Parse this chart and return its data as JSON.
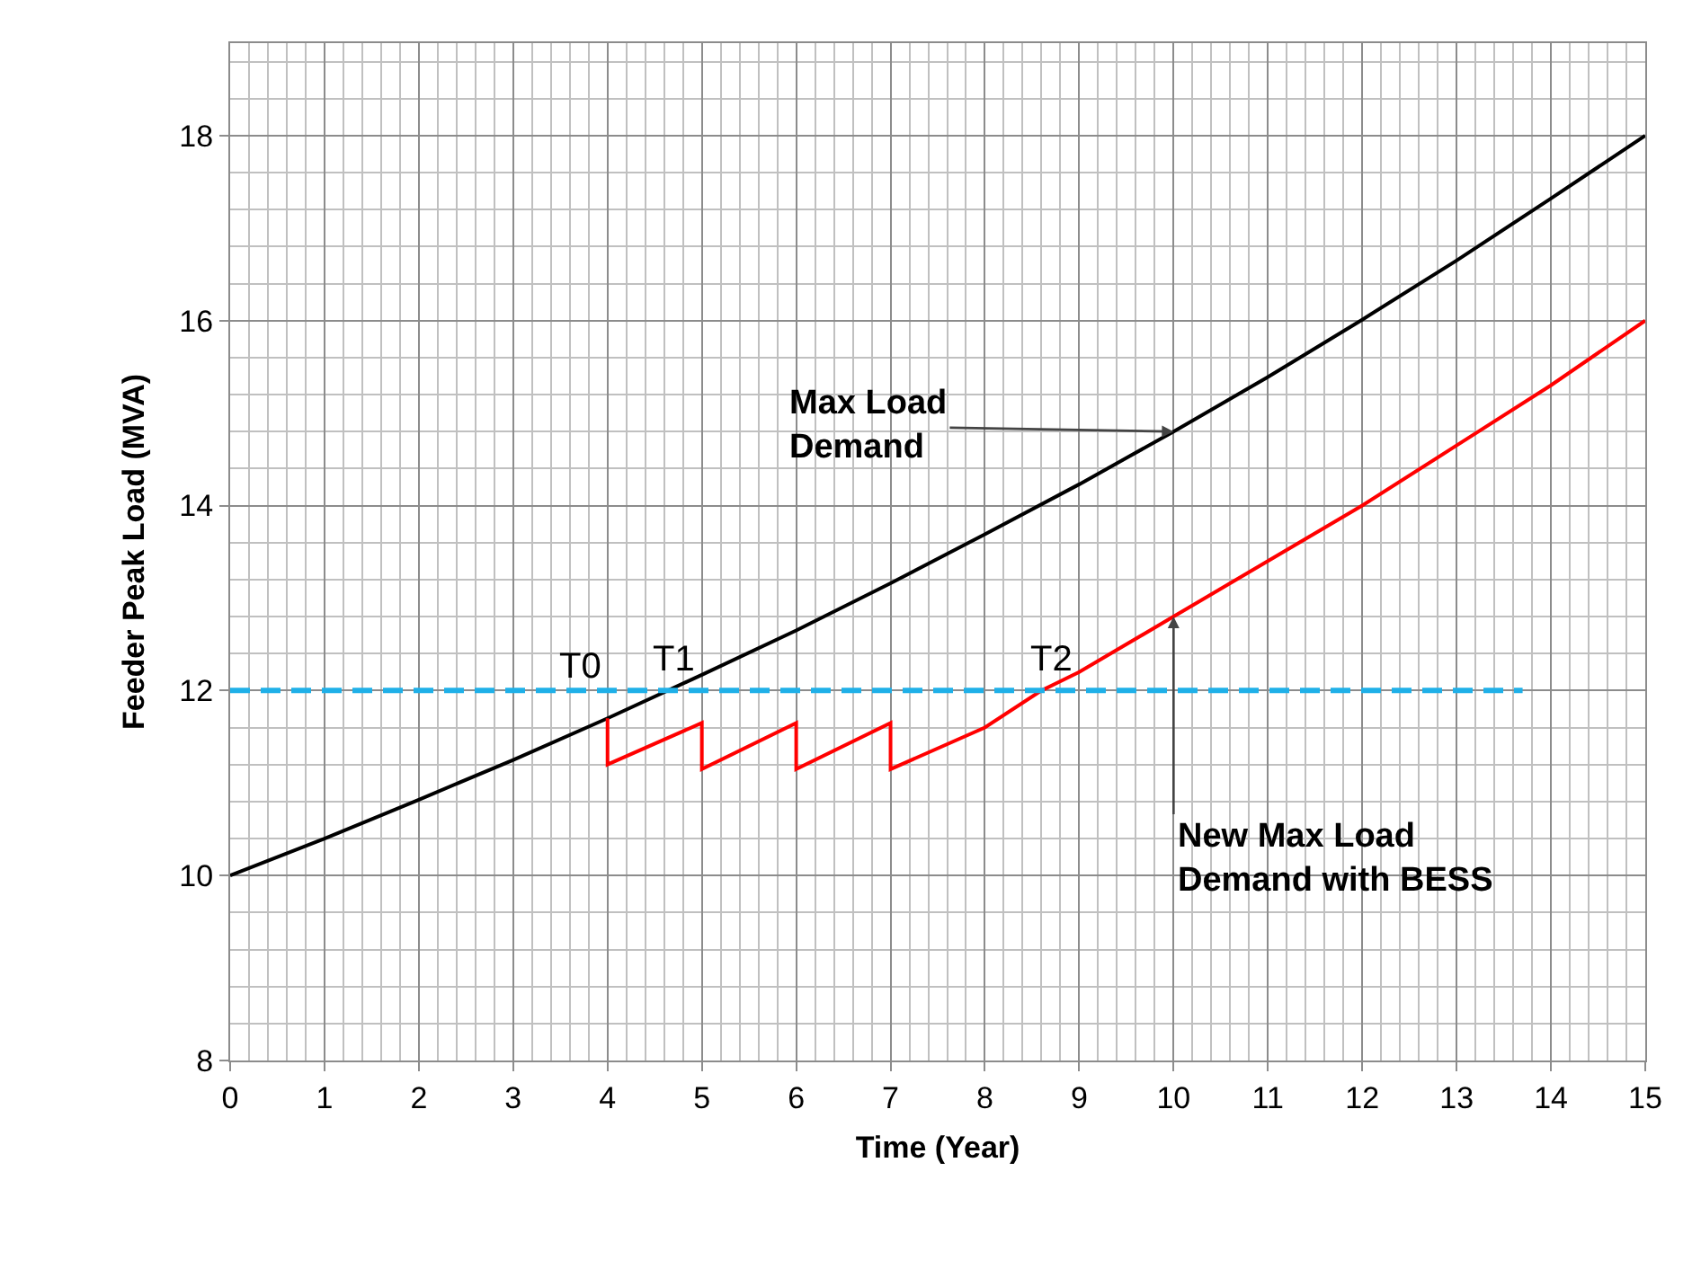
{
  "chart_data": {
    "type": "line",
    "xlabel": "Time (Year)",
    "ylabel": "Feeder Peak Load (MVA)",
    "xlim": [
      0,
      15
    ],
    "xticks": [
      0,
      1,
      2,
      3,
      4,
      5,
      6,
      7,
      8,
      9,
      10,
      11,
      12,
      13,
      14,
      15
    ],
    "ylim": [
      8,
      19
    ],
    "yticks": [
      8,
      10,
      12,
      14,
      16,
      18
    ],
    "grid": true,
    "marker": "none",
    "series": [
      {
        "color": "#000000",
        "x": [
          0,
          1,
          2,
          3,
          4,
          5,
          6,
          7,
          8,
          9,
          10,
          11,
          12,
          13,
          14,
          15
        ],
        "values": [
          10,
          10.4,
          10.82,
          11.25,
          11.7,
          12.17,
          12.65,
          13.16,
          13.69,
          14.23,
          14.8,
          15.39,
          16.01,
          16.65,
          17.32,
          18.0
        ],
        "line_style": "solid"
      },
      {
        "color": "#ff0000",
        "x": [
          4,
          4,
          5,
          5,
          6,
          6,
          7,
          7,
          8,
          8.6,
          9,
          10,
          11,
          12,
          13,
          14,
          15
        ],
        "values": [
          11.7,
          11.2,
          11.65,
          11.15,
          11.65,
          11.15,
          11.65,
          11.15,
          11.6,
          12.0,
          12.2,
          12.8,
          13.4,
          14.0,
          14.65,
          15.3,
          16.0
        ],
        "line_style": "solid"
      },
      {
        "color": "#1fb0e8",
        "x": [
          0,
          13.7
        ],
        "values": [
          12,
          12
        ],
        "line_style": "dashed"
      }
    ],
    "annotations": [
      {
        "text": "T0",
        "x": 4,
        "y": 11.7
      },
      {
        "text": "T1",
        "x": 4.6,
        "y": 12
      },
      {
        "text": "T2",
        "x": 8.6,
        "y": 12
      },
      {
        "text": "Max Load Demand",
        "x": 10,
        "y": 14.8
      },
      {
        "text": "New Max Load Demand with BESS",
        "x": 10,
        "y": 12.8
      }
    ]
  }
}
